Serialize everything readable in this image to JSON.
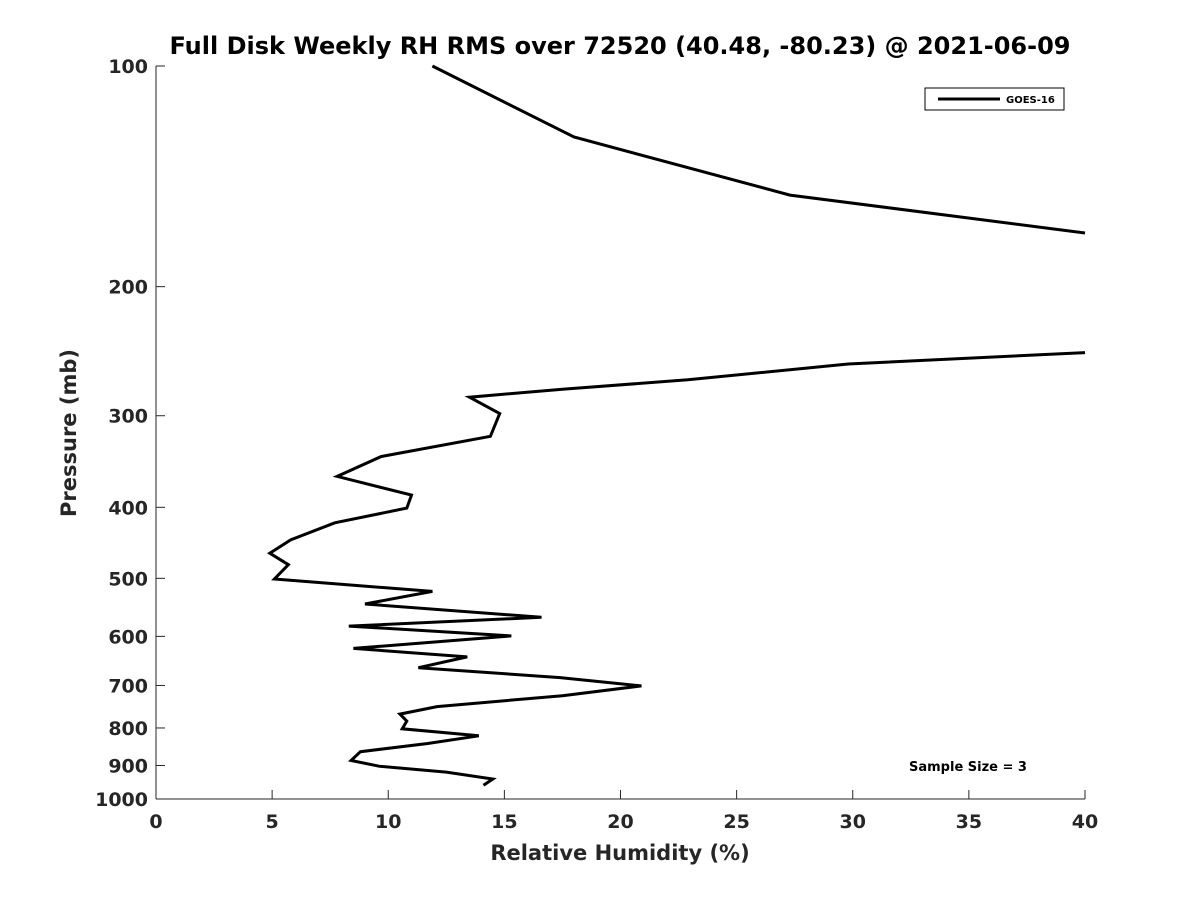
{
  "chart_data": {
    "type": "line",
    "title": "Full Disk Weekly RH RMS over 72520 (40.48, -80.23) @ 2021-06-09",
    "xlabel": "Relative Humidity (%)",
    "ylabel": "Pressure (mb)",
    "xlim": [
      0,
      40
    ],
    "ylim": [
      100,
      1000
    ],
    "y_scale": "log",
    "y_reversed": true,
    "grid": false,
    "legend_position": "top-right",
    "x_ticks": [
      0,
      5,
      10,
      15,
      20,
      25,
      30,
      35,
      40
    ],
    "y_ticks": [
      100,
      200,
      300,
      400,
      500,
      600,
      700,
      800,
      900,
      1000
    ],
    "annotation": "Sample Size = 3",
    "series": [
      {
        "name": "GOES-16",
        "color": "#000000",
        "segments": [
          [
            {
              "x": 11.9,
              "y": 100
            },
            {
              "x": 18.0,
              "y": 125
            },
            {
              "x": 27.3,
              "y": 150
            },
            {
              "x": 40.0,
              "y": 169
            }
          ],
          [
            {
              "x": 40.0,
              "y": 246
            },
            {
              "x": 29.8,
              "y": 255
            },
            {
              "x": 22.9,
              "y": 268
            },
            {
              "x": 17.5,
              "y": 276
            },
            {
              "x": 13.5,
              "y": 283
            },
            {
              "x": 14.8,
              "y": 298
            },
            {
              "x": 14.4,
              "y": 320
            },
            {
              "x": 9.7,
              "y": 341
            },
            {
              "x": 7.8,
              "y": 363
            },
            {
              "x": 11.0,
              "y": 385
            },
            {
              "x": 10.8,
              "y": 401
            },
            {
              "x": 7.7,
              "y": 420
            },
            {
              "x": 5.8,
              "y": 443
            },
            {
              "x": 4.9,
              "y": 462
            },
            {
              "x": 5.7,
              "y": 479
            },
            {
              "x": 5.1,
              "y": 501
            },
            {
              "x": 11.9,
              "y": 521
            },
            {
              "x": 9.0,
              "y": 542
            },
            {
              "x": 16.6,
              "y": 565
            },
            {
              "x": 8.3,
              "y": 581
            },
            {
              "x": 15.3,
              "y": 599
            },
            {
              "x": 8.5,
              "y": 623
            },
            {
              "x": 13.4,
              "y": 640
            },
            {
              "x": 11.3,
              "y": 662
            },
            {
              "x": 17.4,
              "y": 683
            },
            {
              "x": 20.9,
              "y": 701
            },
            {
              "x": 17.5,
              "y": 723
            },
            {
              "x": 12.1,
              "y": 748
            },
            {
              "x": 10.5,
              "y": 766
            },
            {
              "x": 10.8,
              "y": 783
            },
            {
              "x": 10.6,
              "y": 802
            },
            {
              "x": 13.9,
              "y": 820
            },
            {
              "x": 11.7,
              "y": 840
            },
            {
              "x": 8.8,
              "y": 862
            },
            {
              "x": 8.4,
              "y": 886
            },
            {
              "x": 9.6,
              "y": 902
            },
            {
              "x": 12.5,
              "y": 919
            },
            {
              "x": 14.5,
              "y": 939
            },
            {
              "x": 14.1,
              "y": 958
            }
          ]
        ]
      }
    ]
  }
}
